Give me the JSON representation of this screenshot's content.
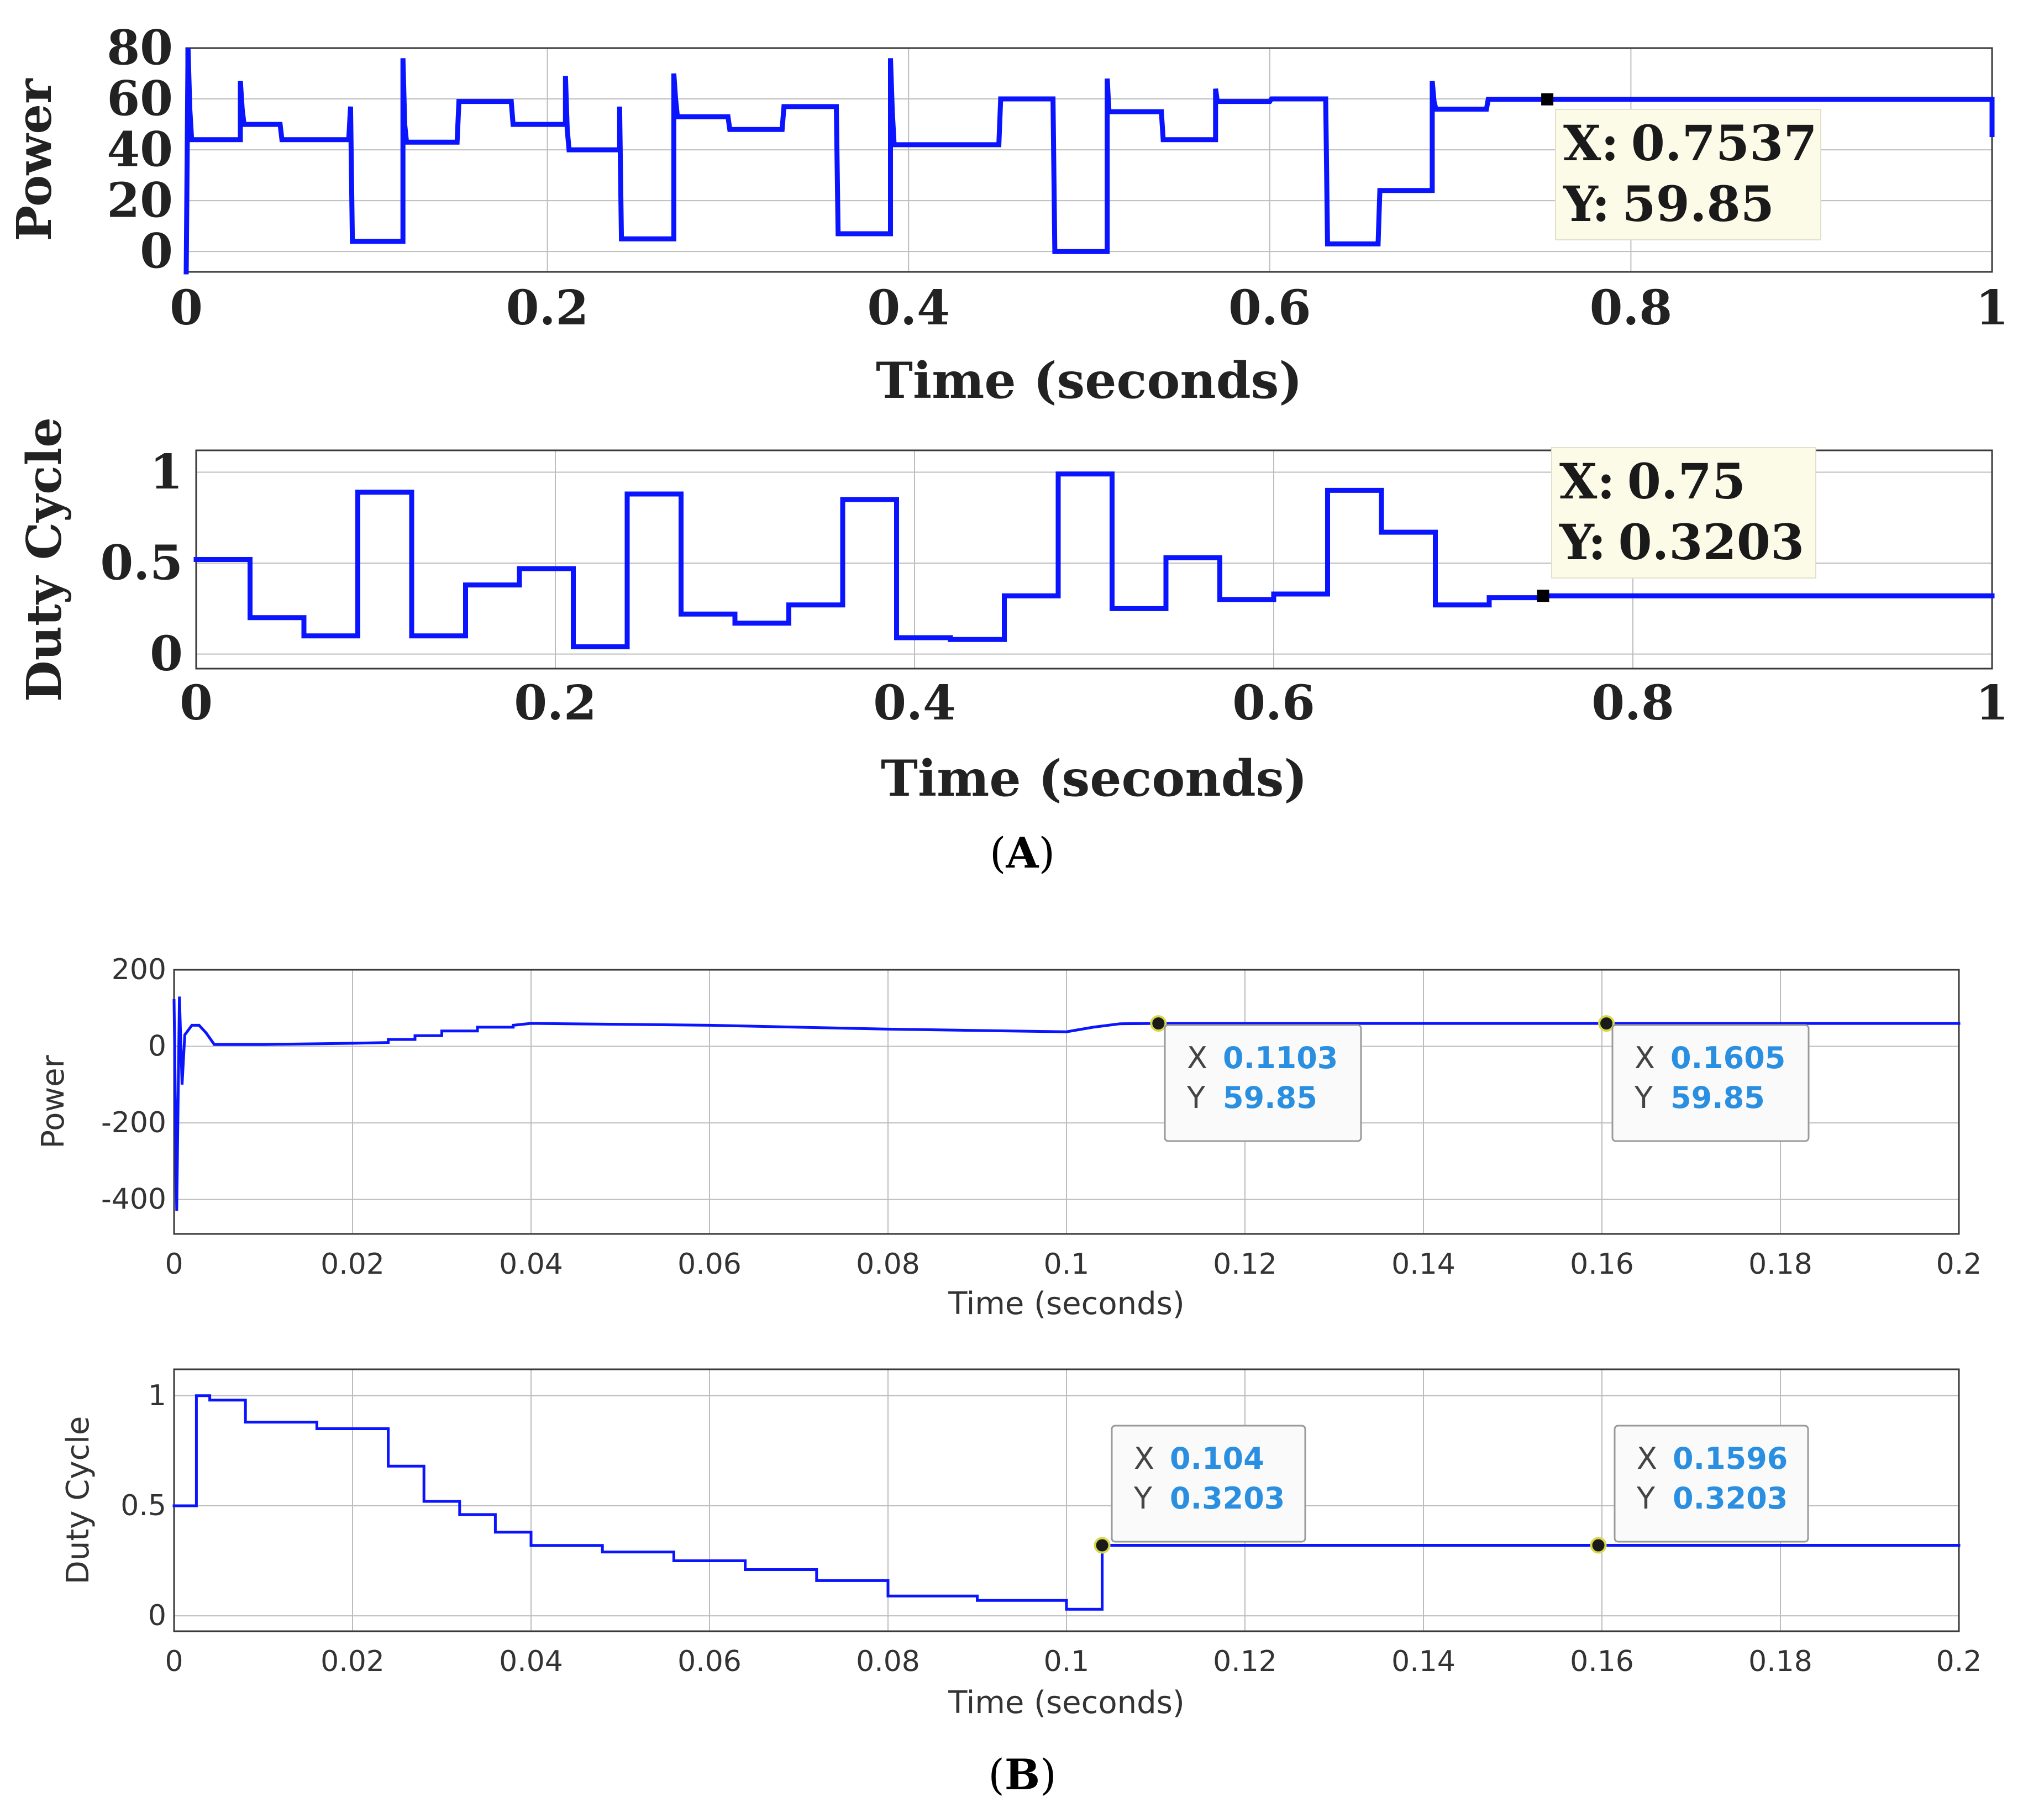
{
  "figure": {
    "captions": [
      {
        "letter": "A",
        "open": "(",
        "close": ")"
      },
      {
        "letter": "B",
        "open": "(",
        "close": ")"
      }
    ],
    "colors": {
      "series": "#0a14ff",
      "tooltip_value_B": "#2a8fe0"
    }
  },
  "chart_data": [
    {
      "id": "A1",
      "panel": "A",
      "type": "line",
      "ylabel": "Power",
      "xlabel": "Time (seconds)",
      "xlim": [
        0,
        1
      ],
      "ylim": [
        -8,
        80
      ],
      "xticks": [
        0,
        0.2,
        0.4,
        0.6,
        0.8,
        1
      ],
      "xtick_labels": [
        "0",
        "0.2",
        "0.4",
        "0.6",
        "0.8",
        "1"
      ],
      "yticks": [
        0,
        20,
        40,
        60,
        80
      ],
      "ytick_labels": [
        "0",
        "20",
        "40",
        "60",
        "80"
      ],
      "grid": true,
      "series": [
        {
          "name": "Power",
          "x": [
            0,
            0.001,
            0.002,
            0.003,
            0.03,
            0.03,
            0.031,
            0.032,
            0.033,
            0.052,
            0.053,
            0.065,
            0.066,
            0.09,
            0.091,
            0.092,
            0.12,
            0.12,
            0.121,
            0.122,
            0.15,
            0.151,
            0.152,
            0.18,
            0.181,
            0.182,
            0.21,
            0.21,
            0.211,
            0.212,
            0.24,
            0.24,
            0.241,
            0.242,
            0.27,
            0.27,
            0.271,
            0.272,
            0.3,
            0.301,
            0.302,
            0.33,
            0.331,
            0.332,
            0.36,
            0.361,
            0.362,
            0.39,
            0.39,
            0.391,
            0.392,
            0.42,
            0.421,
            0.45,
            0.451,
            0.452,
            0.48,
            0.481,
            0.482,
            0.51,
            0.51,
            0.511,
            0.512,
            0.54,
            0.541,
            0.542,
            0.57,
            0.57,
            0.571,
            0.572,
            0.6,
            0.601,
            0.63,
            0.631,
            0.632,
            0.66,
            0.661,
            0.69,
            0.69,
            0.691,
            0.692,
            0.72,
            0.721,
            0.7537,
            1.0,
            1.0
          ],
          "y": [
            -8,
            80,
            56,
            44,
            44,
            67,
            56,
            50,
            50,
            50,
            44,
            44,
            44,
            44,
            57,
            4,
            4,
            76,
            50,
            43,
            43,
            59,
            59,
            59,
            50,
            50,
            50,
            69,
            48,
            40,
            40,
            57,
            5,
            5,
            5,
            70,
            60,
            53,
            53,
            48,
            48,
            48,
            57,
            57,
            57,
            7,
            7,
            7,
            76,
            55,
            42,
            42,
            42,
            42,
            60,
            60,
            60,
            0,
            0,
            0,
            68,
            55,
            55,
            55,
            44,
            44,
            44,
            64,
            59,
            59,
            59,
            60,
            60,
            60,
            3,
            3,
            24,
            24,
            67,
            59,
            56,
            56,
            59.85,
            59.85,
            59.85,
            46
          ]
        }
      ],
      "tooltips": [
        {
          "x_label": "X:",
          "x_value": "0.7537",
          "y_label": "Y:",
          "y_value": "59.85",
          "x": 0.7537,
          "y": 59.85
        }
      ]
    },
    {
      "id": "A2",
      "panel": "A",
      "type": "line",
      "ylabel": "Duty Cycle",
      "xlabel": "Time (seconds)",
      "xlim": [
        0,
        1
      ],
      "ylim": [
        -0.08,
        1.12
      ],
      "xticks": [
        0,
        0.2,
        0.4,
        0.6,
        0.8,
        1
      ],
      "xtick_labels": [
        "0",
        "0.2",
        "0.4",
        "0.6",
        "0.8",
        "1"
      ],
      "yticks": [
        0,
        0.5,
        1
      ],
      "ytick_labels": [
        "0",
        "0.5",
        "1"
      ],
      "grid": true,
      "series": [
        {
          "name": "Duty Cycle",
          "x": [
            0,
            0.03,
            0.03,
            0.06,
            0.06,
            0.09,
            0.09,
            0.12,
            0.12,
            0.15,
            0.15,
            0.18,
            0.18,
            0.21,
            0.21,
            0.24,
            0.24,
            0.27,
            0.27,
            0.3,
            0.3,
            0.33,
            0.33,
            0.36,
            0.36,
            0.39,
            0.39,
            0.42,
            0.42,
            0.45,
            0.45,
            0.48,
            0.48,
            0.51,
            0.51,
            0.54,
            0.54,
            0.57,
            0.57,
            0.6,
            0.6,
            0.63,
            0.63,
            0.66,
            0.66,
            0.69,
            0.69,
            0.72,
            0.72,
            0.75,
            0.75,
            1.0
          ],
          "y": [
            0.52,
            0.52,
            0.2,
            0.2,
            0.1,
            0.1,
            0.89,
            0.89,
            0.1,
            0.1,
            0.38,
            0.38,
            0.47,
            0.47,
            0.04,
            0.04,
            0.88,
            0.88,
            0.22,
            0.22,
            0.17,
            0.17,
            0.27,
            0.27,
            0.85,
            0.85,
            0.09,
            0.09,
            0.08,
            0.08,
            0.32,
            0.32,
            0.99,
            0.99,
            0.25,
            0.25,
            0.53,
            0.53,
            0.3,
            0.3,
            0.33,
            0.33,
            0.9,
            0.9,
            0.67,
            0.67,
            0.27,
            0.27,
            0.31,
            0.31,
            0.3203,
            0.3203
          ]
        }
      ],
      "tooltips": [
        {
          "x_label": "X:",
          "x_value": "0.75",
          "y_label": "Y:",
          "y_value": "0.3203",
          "x": 0.75,
          "y": 0.3203
        }
      ]
    },
    {
      "id": "B1",
      "panel": "B",
      "type": "line",
      "ylabel": "Power",
      "xlabel": "Time (seconds)",
      "xlim": [
        0,
        0.2
      ],
      "ylim": [
        -490,
        200
      ],
      "xticks": [
        0,
        0.02,
        0.04,
        0.06,
        0.08,
        0.1,
        0.12,
        0.14,
        0.16,
        0.18,
        0.2
      ],
      "xtick_labels": [
        "0",
        "0.02",
        "0.04",
        "0.06",
        "0.08",
        "0.1",
        "0.12",
        "0.14",
        "0.16",
        "0.18",
        "0.2"
      ],
      "yticks": [
        200,
        0,
        -200,
        -400
      ],
      "ytick_labels": [
        "200",
        "0",
        "-200",
        "-400"
      ],
      "grid": true,
      "series": [
        {
          "name": "Power",
          "x": [
            0,
            0.0003,
            0.0006,
            0.0009,
            0.0012,
            0.002,
            0.0028,
            0.0036,
            0.0045,
            0.01,
            0.02,
            0.024,
            0.024,
            0.027,
            0.027,
            0.03,
            0.03,
            0.034,
            0.034,
            0.038,
            0.038,
            0.04,
            0.06,
            0.08,
            0.1,
            0.103,
            0.106,
            0.1103,
            0.2
          ],
          "y": [
            120,
            -430,
            130,
            -100,
            30,
            55,
            55,
            35,
            5,
            5,
            8,
            10,
            18,
            18,
            28,
            28,
            40,
            40,
            50,
            50,
            55,
            60,
            55,
            45,
            38,
            50,
            59,
            59.85,
            59.85
          ]
        }
      ],
      "tooltips": [
        {
          "x_label": "X",
          "x_value": "0.1103",
          "y_label": "Y",
          "y_value": "59.85",
          "x": 0.1103,
          "y": 59.85
        },
        {
          "x_label": "X",
          "x_value": "0.1605",
          "y_label": "Y",
          "y_value": "59.85",
          "x": 0.1605,
          "y": 59.85
        }
      ]
    },
    {
      "id": "B2",
      "panel": "B",
      "type": "line",
      "ylabel": "Duty Cycle",
      "xlabel": "Time (seconds)",
      "xlim": [
        0,
        0.2
      ],
      "ylim": [
        -0.07,
        1.12
      ],
      "xticks": [
        0,
        0.02,
        0.04,
        0.06,
        0.08,
        0.1,
        0.12,
        0.14,
        0.16,
        0.18,
        0.2
      ],
      "xtick_labels": [
        "0",
        "0.02",
        "0.04",
        "0.06",
        "0.08",
        "0.1",
        "0.12",
        "0.14",
        "0.16",
        "0.18",
        "0.2"
      ],
      "yticks": [
        1,
        0.5,
        0
      ],
      "ytick_labels": [
        "1",
        "0.5",
        "0"
      ],
      "grid": true,
      "series": [
        {
          "name": "Duty Cycle",
          "x": [
            0,
            0.0025,
            0.0025,
            0.004,
            0.004,
            0.008,
            0.008,
            0.016,
            0.016,
            0.024,
            0.024,
            0.028,
            0.028,
            0.032,
            0.032,
            0.036,
            0.036,
            0.04,
            0.04,
            0.048,
            0.048,
            0.056,
            0.056,
            0.064,
            0.064,
            0.072,
            0.072,
            0.08,
            0.08,
            0.09,
            0.09,
            0.1,
            0.1,
            0.104,
            0.104,
            0.2
          ],
          "y": [
            0.5,
            0.5,
            1.0,
            1.0,
            0.98,
            0.98,
            0.88,
            0.88,
            0.85,
            0.85,
            0.68,
            0.68,
            0.52,
            0.52,
            0.46,
            0.46,
            0.38,
            0.38,
            0.32,
            0.32,
            0.29,
            0.29,
            0.25,
            0.25,
            0.21,
            0.21,
            0.16,
            0.16,
            0.09,
            0.09,
            0.07,
            0.07,
            0.03,
            0.03,
            0.3203,
            0.3203
          ]
        }
      ],
      "tooltips": [
        {
          "x_label": "X",
          "x_value": "0.104",
          "y_label": "Y",
          "y_value": "0.3203",
          "x": 0.104,
          "y": 0.3203
        },
        {
          "x_label": "X",
          "x_value": "0.1596",
          "y_label": "Y",
          "y_value": "0.3203",
          "x": 0.1596,
          "y": 0.3203
        }
      ]
    }
  ]
}
